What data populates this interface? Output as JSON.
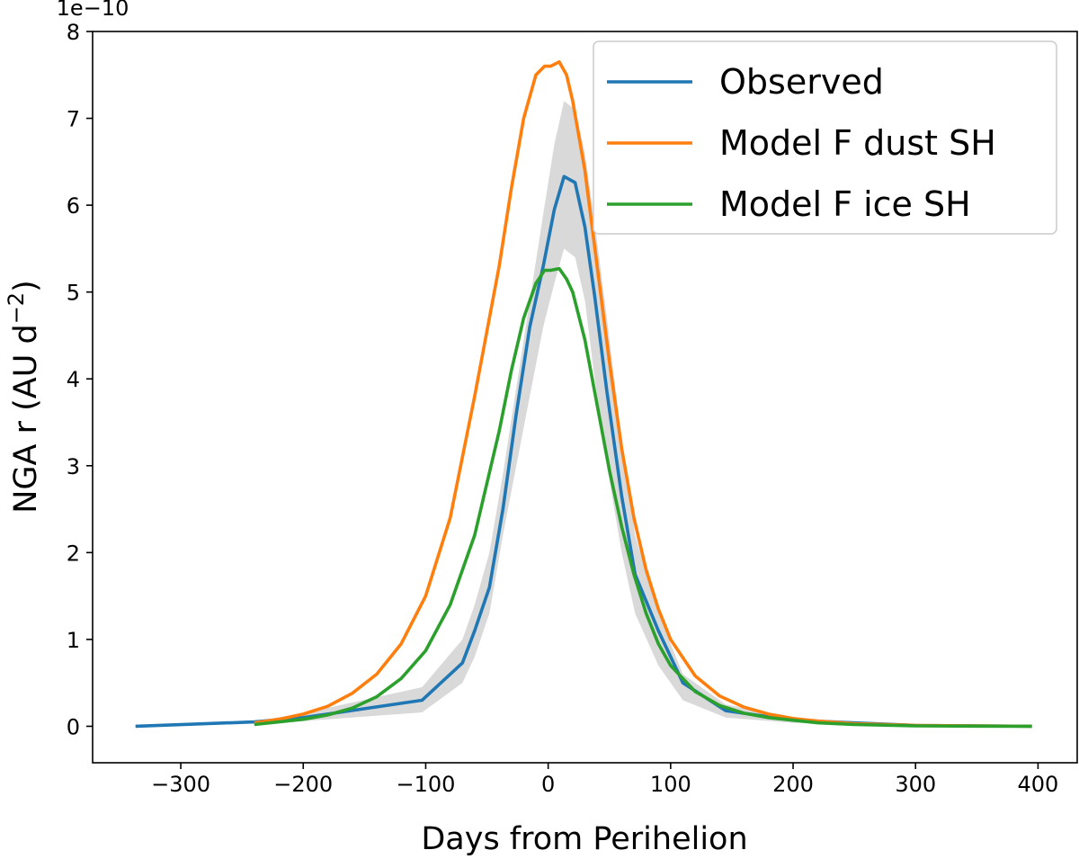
{
  "chart_data": {
    "type": "line",
    "title": "",
    "xlabel": "Days from Perihelion",
    "ylabel": "NGA r (AU d",
    "ylabel_sup": "−2",
    "ylabel_close": ")",
    "offset_text": "1e−10",
    "xlim": [
      -372,
      432
    ],
    "ylim": [
      -0.42,
      8.0
    ],
    "xticks": [
      -300,
      -200,
      -100,
      0,
      100,
      200,
      300,
      400
    ],
    "xtick_labels": [
      "−300",
      "−200",
      "−100",
      "0",
      "100",
      "200",
      "300",
      "400"
    ],
    "yticks": [
      0,
      1,
      2,
      3,
      4,
      5,
      6,
      7,
      8
    ],
    "ytick_labels": [
      "0",
      "1",
      "2",
      "3",
      "4",
      "5",
      "6",
      "7",
      "8"
    ],
    "legend_position": "top-right",
    "uncertainty_band": {
      "color": "#d9d9d9",
      "x": [
        -337,
        -240,
        -200,
        -103,
        -70,
        -60,
        -48,
        -37,
        -26,
        -15,
        -4,
        5,
        13,
        22,
        30,
        38,
        48,
        60,
        71,
        90,
        110,
        145,
        200,
        300,
        395
      ],
      "lower": [
        0,
        0.04,
        0.06,
        0.16,
        0.5,
        0.8,
        1.3,
        2.2,
        3.0,
        3.8,
        4.6,
        5.1,
        5.5,
        5.4,
        4.9,
        4.0,
        3.0,
        2.0,
        1.3,
        0.7,
        0.3,
        0.1,
        0.04,
        0,
        0
      ],
      "upper": [
        0,
        0.06,
        0.15,
        0.45,
        1.0,
        1.4,
        2.0,
        2.9,
        3.9,
        4.9,
        5.9,
        6.7,
        7.2,
        7.1,
        6.6,
        5.8,
        4.7,
        3.3,
        2.2,
        1.3,
        0.6,
        0.25,
        0.1,
        0.01,
        0
      ]
    },
    "series": [
      {
        "name": "Observed",
        "color": "#1f77b4",
        "x": [
          -337,
          -240,
          -200,
          -103,
          -70,
          -60,
          -48,
          -37,
          -26,
          -15,
          -4,
          5,
          13,
          22,
          30,
          38,
          48,
          60,
          71,
          90,
          110,
          145,
          200,
          300,
          395
        ],
        "values": [
          0,
          0.05,
          0.1,
          0.3,
          0.73,
          1.1,
          1.6,
          2.5,
          3.6,
          4.6,
          5.3,
          5.95,
          6.33,
          6.26,
          5.75,
          4.95,
          3.85,
          2.65,
          1.75,
          1.1,
          0.5,
          0.18,
          0.07,
          0.01,
          0
        ]
      },
      {
        "name": "Model F dust SH",
        "color": "#ff7f0e",
        "x": [
          -240,
          -220,
          -200,
          -180,
          -160,
          -140,
          -120,
          -100,
          -80,
          -60,
          -40,
          -30,
          -20,
          -10,
          -3,
          2,
          9,
          15,
          20,
          30,
          40,
          50,
          60,
          70,
          80,
          90,
          100,
          120,
          140,
          160,
          180,
          200,
          220,
          250,
          300,
          350,
          395
        ],
        "values": [
          0.04,
          0.08,
          0.14,
          0.23,
          0.38,
          0.6,
          0.95,
          1.5,
          2.4,
          3.8,
          5.3,
          6.2,
          7.0,
          7.5,
          7.6,
          7.6,
          7.65,
          7.5,
          7.2,
          6.4,
          5.3,
          4.2,
          3.2,
          2.4,
          1.8,
          1.35,
          1.0,
          0.58,
          0.35,
          0.22,
          0.14,
          0.09,
          0.06,
          0.03,
          0.01,
          0.005,
          0
        ]
      },
      {
        "name": "Model F ice SH",
        "color": "#2ca02c",
        "x": [
          -240,
          -220,
          -200,
          -180,
          -160,
          -140,
          -120,
          -100,
          -80,
          -60,
          -40,
          -30,
          -20,
          -10,
          -3,
          2,
          9,
          15,
          20,
          30,
          40,
          50,
          60,
          70,
          80,
          90,
          100,
          120,
          140,
          160,
          180,
          200,
          220,
          250,
          300,
          350,
          395
        ],
        "values": [
          0.02,
          0.05,
          0.08,
          0.13,
          0.21,
          0.34,
          0.55,
          0.87,
          1.4,
          2.2,
          3.4,
          4.1,
          4.7,
          5.1,
          5.25,
          5.25,
          5.27,
          5.15,
          5.0,
          4.45,
          3.7,
          2.95,
          2.3,
          1.75,
          1.3,
          0.95,
          0.7,
          0.4,
          0.24,
          0.15,
          0.1,
          0.07,
          0.04,
          0.02,
          0.005,
          0.002,
          0
        ]
      }
    ]
  }
}
